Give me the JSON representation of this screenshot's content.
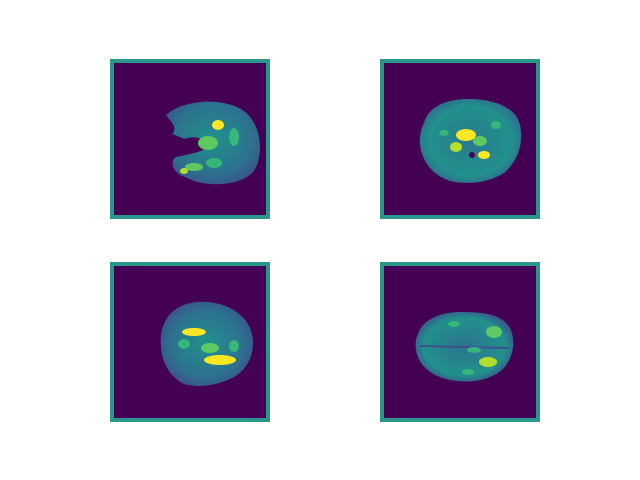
{
  "figure": {
    "colors": {
      "background": "#ffffff",
      "frame": "#2a968c",
      "field": "#440154",
      "tissue_low": "#31688e",
      "tissue_mid": "#21918c",
      "tissue_high": "#5ec962",
      "tissue_peak": "#fde725"
    },
    "panels": [
      {
        "content": "brain-slice-image"
      },
      {
        "content": "brain-slice-image"
      },
      {
        "content": "brain-slice-image"
      },
      {
        "content": "brain-slice-image"
      }
    ]
  }
}
